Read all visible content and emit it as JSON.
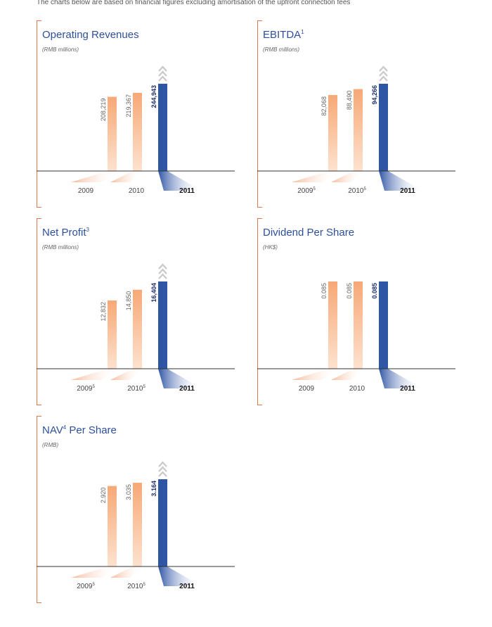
{
  "intro": "The charts below are based on financial figures excluding amortisation of the upfront connection fees",
  "colors": {
    "accent": "#2e4f9c",
    "bar_past": "#f7a876",
    "bar_current": "#2f55a5",
    "bracket": "#e0794a",
    "arrow": "#c9c9c9"
  },
  "chart_data": [
    {
      "type": "bar",
      "title": "Operating Revenues",
      "title_sup": "",
      "unit": "(RMB millions)",
      "categories": [
        "2009",
        "2010",
        "2011"
      ],
      "category_notes": [
        "",
        "",
        ""
      ],
      "values": [
        208219,
        219367,
        244943
      ],
      "value_labels": [
        "208,219",
        "219,367",
        "244,943"
      ],
      "ylim": [
        0,
        244943
      ],
      "arrow_on_last": true
    },
    {
      "type": "bar",
      "title": "EBITDA",
      "title_sup": "1",
      "unit": "(RMB millions)",
      "categories": [
        "2009",
        "2010",
        "2011"
      ],
      "category_notes": [
        "5",
        "5",
        ""
      ],
      "values": [
        82068,
        88490,
        94266
      ],
      "value_labels": [
        "82,068",
        "88,490",
        "94,266"
      ],
      "ylim": [
        0,
        94266
      ],
      "arrow_on_last": true
    },
    {
      "type": "bar",
      "title": "Net Profit",
      "title_sup": "3",
      "unit": "(RMB millions)",
      "categories": [
        "2009",
        "2010",
        "2011"
      ],
      "category_notes": [
        "5",
        "5",
        ""
      ],
      "values": [
        12832,
        14850,
        16404
      ],
      "value_labels": [
        "12,832",
        "14,850",
        "16,404"
      ],
      "ylim": [
        0,
        16404
      ],
      "arrow_on_last": true
    },
    {
      "type": "bar",
      "title": "Dividend Per Share",
      "title_sup": "",
      "unit": "(HK$)",
      "categories": [
        "2009",
        "2010",
        "2011"
      ],
      "category_notes": [
        "",
        "",
        ""
      ],
      "values": [
        0.085,
        0.085,
        0.085
      ],
      "value_labels": [
        "0.085",
        "0.085",
        "0.085"
      ],
      "ylim": [
        0,
        0.085
      ],
      "arrow_on_last": false
    },
    {
      "type": "bar",
      "title": "NAV",
      "title_sup": "4",
      "title_rest": " Per Share",
      "unit": "(RMB)",
      "categories": [
        "2009",
        "2010",
        "2011"
      ],
      "category_notes": [
        "5",
        "5",
        ""
      ],
      "values": [
        2.92,
        3.035,
        3.164
      ],
      "value_labels": [
        "2.920",
        "3.035",
        "3.164"
      ],
      "ylim": [
        0,
        3.164
      ],
      "arrow_on_last": true
    }
  ]
}
